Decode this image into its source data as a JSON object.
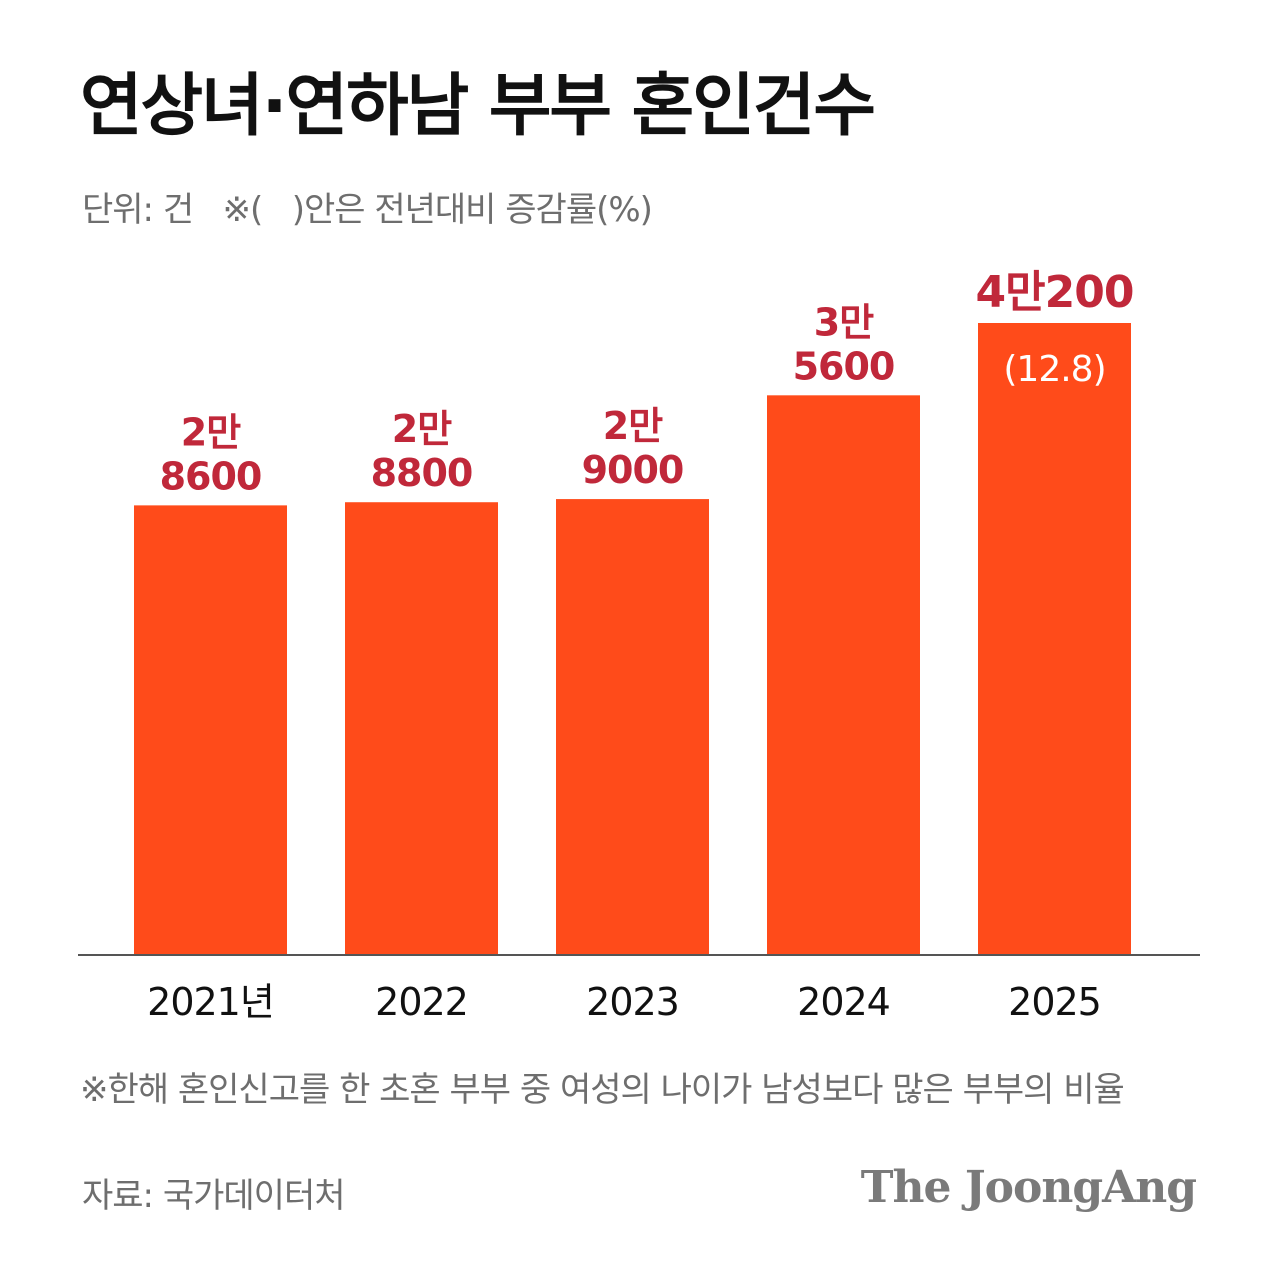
{
  "title": "연상녀·연하남 부부 혼인건수",
  "unit_note": "단위: 건   ※(   )안은 전년대비 증감률(%)",
  "footnote": "※한해 혼인신고를 한 초혼 부부 중 여성의 나이가 남성보다 많은 부부의 비율",
  "source": "자료: 국가데이터처",
  "brand": "The JoongAng",
  "colors": {
    "bar": "#ff4b1a",
    "value_label": "#c0283a",
    "axis": "#555555",
    "text_dark": "#111111",
    "text_gray": "#6e6e6e"
  },
  "chart_data": {
    "type": "bar",
    "categories": [
      "2021년",
      "2022",
      "2023",
      "2024",
      "2025"
    ],
    "values": [
      28600,
      28800,
      29000,
      35600,
      40200
    ],
    "value_labels": [
      [
        "2만",
        "8600"
      ],
      [
        "2만",
        "8800"
      ],
      [
        "2만",
        "9000"
      ],
      [
        "3만",
        "5600"
      ],
      [
        "4만200"
      ]
    ],
    "change_labels": [
      "",
      "",
      "",
      "",
      "(12.8)"
    ],
    "ylim": [
      0,
      40200
    ],
    "grid": false,
    "legend": "none"
  }
}
